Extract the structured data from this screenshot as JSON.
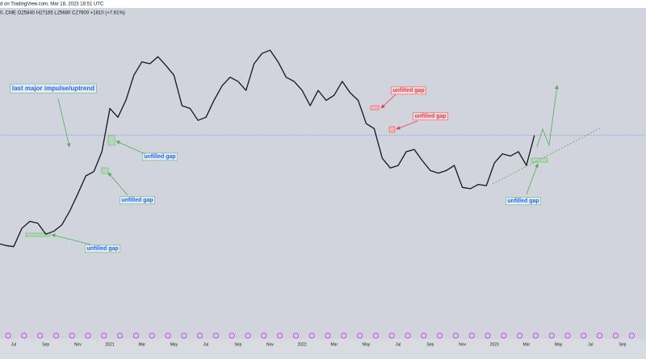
{
  "chart_data": {
    "type": "line",
    "source": "d on TradingView.com, Mar 18, 2023 18:51 UTC",
    "legend_text": "0, CME  O25840 H27165 L25680 C27600 +1810 (+7.61%)",
    "log": true,
    "ylim": [
      3700,
      97000
    ],
    "categories": [
      null,
      null,
      "Jul",
      null,
      null,
      null,
      "Sep",
      null,
      null,
      null,
      "Nov",
      null,
      null,
      null,
      "2021",
      null,
      null,
      null,
      "Mar",
      null,
      null,
      null,
      "May",
      null,
      null,
      null,
      "Jul",
      null,
      null,
      null,
      "Sep",
      null,
      null,
      null,
      "Nov",
      null,
      null,
      null,
      "2022",
      null,
      null,
      null,
      "Mar",
      null,
      null,
      null,
      "May",
      null,
      null,
      null,
      "Jul",
      null,
      null,
      null,
      "Sep",
      null,
      null,
      null,
      "Nov",
      null,
      null,
      null,
      "2023",
      null,
      null,
      null,
      "Mar",
      null,
      null,
      null,
      "May",
      null,
      null,
      null,
      "Jul",
      null,
      null,
      null,
      "Sep",
      null
    ],
    "series": [
      {
        "name": "CME",
        "color": "#131722",
        "values": [
          9500,
          9300,
          9200,
          11000,
          11800,
          11600,
          10400,
          10700,
          11400,
          13100,
          15500,
          18500,
          19300,
          23500,
          36000,
          33000,
          39000,
          50000,
          57000,
          56000,
          60000,
          55000,
          50000,
          37000,
          36000,
          32000,
          33000,
          39000,
          45000,
          49000,
          47000,
          43000,
          56000,
          62000,
          64000,
          57000,
          49000,
          47000,
          43000,
          37000,
          43000,
          39000,
          41000,
          47000,
          42000,
          39000,
          31000,
          29500,
          22000,
          20000,
          20500,
          23500,
          24000,
          21500,
          19500,
          19000,
          19500,
          20500,
          16500,
          16300,
          17000,
          16800,
          21000,
          23000,
          22500,
          23500,
          20500,
          27600,
          null,
          null,
          null,
          null,
          null,
          null,
          null,
          null,
          null,
          null,
          null,
          null
        ]
      }
    ],
    "annotations": [
      {
        "text": "last major impulse/uptrend",
        "color": "#2962ff"
      },
      {
        "text": "unfilled gap",
        "color": "#2962ff"
      },
      {
        "text": "unfilled gap",
        "color": "#2962ff"
      },
      {
        "text": "unfilled gap",
        "color": "#2962ff"
      },
      {
        "text": "unfilled gap",
        "color": "#2962ff"
      },
      {
        "text": "unfilled gap",
        "color": "#f23645"
      },
      {
        "text": "unfilled gap",
        "color": "#f23645"
      }
    ]
  }
}
